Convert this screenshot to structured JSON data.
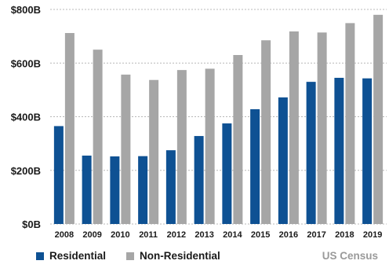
{
  "chart_data": {
    "type": "bar",
    "categories": [
      "2008",
      "2009",
      "2010",
      "2011",
      "2012",
      "2013",
      "2014",
      "2015",
      "2016",
      "2017",
      "2018",
      "2019"
    ],
    "series": [
      {
        "name": "Residential",
        "values": [
          365,
          255,
          252,
          253,
          275,
          328,
          375,
          428,
          472,
          530,
          545,
          543
        ]
      },
      {
        "name": "Non-Residential",
        "values": [
          712,
          650,
          557,
          537,
          574,
          579,
          630,
          685,
          718,
          714,
          749,
          780
        ]
      }
    ],
    "y_ticks": [
      {
        "value": 0,
        "label": "$0B"
      },
      {
        "value": 200,
        "label": "$200B"
      },
      {
        "value": 400,
        "label": "$400B"
      },
      {
        "value": 600,
        "label": "$600B"
      },
      {
        "value": 800,
        "label": "$800B"
      }
    ],
    "ylim": [
      0,
      800
    ],
    "grid": true,
    "legend_position": "bottom-left",
    "colors": {
      "Residential": "#0e5193",
      "Non-Residential": "#a6a6a6",
      "grid": "#b8b8b8"
    },
    "source": "US Census"
  }
}
